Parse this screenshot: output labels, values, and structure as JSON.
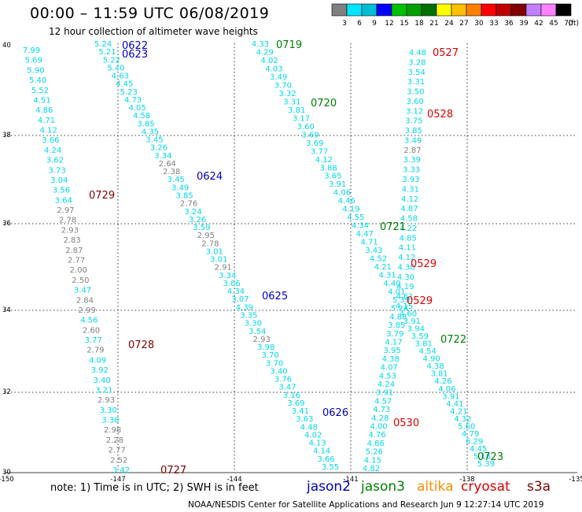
{
  "header": {
    "title": "00:00 – 11:59 UTC 06/08/2019",
    "subtitle": "12 hour collection of altimeter wave heights"
  },
  "colorbar": {
    "unit_label": "(ft)",
    "bins": [
      {
        "label": "3",
        "color": "#808080"
      },
      {
        "label": "6",
        "color": "#00e5ff"
      },
      {
        "label": "9",
        "color": "#00bcd4"
      },
      {
        "label": "12",
        "color": "#0000ff"
      },
      {
        "label": "15",
        "color": "#00c000"
      },
      {
        "label": "18",
        "color": "#00a000"
      },
      {
        "label": "21",
        "color": "#007000"
      },
      {
        "label": "24",
        "color": "#ffff00"
      },
      {
        "label": "27",
        "color": "#ffc000"
      },
      {
        "label": "30",
        "color": "#ff8000"
      },
      {
        "label": "33",
        "color": "#ff0000"
      },
      {
        "label": "36",
        "color": "#c00000"
      },
      {
        "label": "39",
        "color": "#800000"
      },
      {
        "label": "42",
        "color": "#c080ff"
      },
      {
        "label": "45",
        "color": "#ff80ff"
      },
      {
        "label": "70",
        "color": "#000000"
      }
    ]
  },
  "map": {
    "lon_ticks": [
      "-150",
      "-147",
      "-144",
      "-141",
      "-138",
      "-135"
    ],
    "lat_ticks": [
      "40",
      "38",
      "36",
      "34",
      "32",
      "30"
    ]
  },
  "colors": {
    "cyan": "#00d8e8",
    "gray": "#808080",
    "jason2": "#0000c0",
    "jason3": "#008000",
    "altika": "#ff8c00",
    "cryosat": "#e00000",
    "s3a": "#800000"
  },
  "tracks": [
    {
      "id": "left",
      "values": [
        "7.99",
        "5.69",
        "5.90",
        "5.40",
        "5.52",
        "4.51",
        "4.86",
        "4.71",
        "4.12",
        "3.66",
        "4.24",
        "3.62",
        "3.73",
        "3.04",
        "3.56",
        "3.64",
        "2.97",
        "2.78",
        "2.93",
        "2.83",
        "2.87",
        "2.77",
        "2.00",
        "2.50",
        "3.47",
        "2.84",
        "2.99",
        "4.56",
        "2.60",
        "3.77",
        "2.79",
        "4.09",
        "3.92",
        "3.40",
        "3.21",
        "2.93",
        "3.30",
        "3.38",
        "2.98",
        "2.28",
        "2.77",
        "2.52",
        "3.42"
      ],
      "colors": [
        "c",
        "c",
        "c",
        "c",
        "c",
        "c",
        "c",
        "c",
        "c",
        "c",
        "c",
        "c",
        "c",
        "c",
        "c",
        "c",
        "g",
        "g",
        "g",
        "g",
        "g",
        "g",
        "g",
        "g",
        "c",
        "g",
        "g",
        "c",
        "g",
        "c",
        "g",
        "c",
        "c",
        "c",
        "c",
        "g",
        "c",
        "c",
        "g",
        "g",
        "g",
        "g",
        "c"
      ]
    },
    {
      "id": "jason2-a",
      "values": [
        "5.24",
        "5.21",
        "5.22",
        "5.40",
        "4.63",
        "4.45",
        "5.23",
        "4.73",
        "4.05",
        "4.58",
        "3.85",
        "4.35",
        "3.45",
        "3.26",
        "3.34",
        "2.64",
        "2.38",
        "3.45",
        "3.49",
        "3.85",
        "2.76",
        "3.24",
        "3.26",
        "3.59",
        "2.95",
        "2.78",
        "3.01",
        "3.01",
        "2.91",
        "3.34",
        "3.66",
        "4.34",
        "3.07",
        "4.39",
        "3.35",
        "3.30",
        "3.54",
        "2.93",
        "3.98",
        "3.70",
        "3.70",
        "3.40",
        "3.76",
        "3.47",
        "3.16",
        "3.69",
        "3.41",
        "3.63",
        "4.48",
        "4.02",
        "4.13",
        "4.14",
        "3.66",
        "3.55"
      ],
      "colors": [
        "c",
        "c",
        "c",
        "c",
        "c",
        "c",
        "c",
        "c",
        "c",
        "c",
        "c",
        "c",
        "c",
        "c",
        "c",
        "g",
        "g",
        "c",
        "c",
        "c",
        "g",
        "c",
        "c",
        "c",
        "g",
        "g",
        "c",
        "c",
        "g",
        "c",
        "c",
        "c",
        "c",
        "c",
        "c",
        "c",
        "c",
        "g",
        "c",
        "c",
        "c",
        "c",
        "c",
        "c",
        "c",
        "c",
        "c",
        "c",
        "c",
        "c",
        "c",
        "c",
        "c",
        "c"
      ]
    },
    {
      "id": "jason3-a",
      "values": [
        "4.33",
        "4.29",
        "4.02",
        "4.03",
        "3.49",
        "3.70",
        "3.32",
        "3.31",
        "3.81",
        "3.17",
        "3.60",
        "3.69",
        "3.69",
        "3.77",
        "4.12",
        "3.88",
        "3.65",
        "3.91",
        "4.06",
        "4.46",
        "4.19",
        "4.55",
        "4.34",
        "4.47",
        "4.71",
        "3.43",
        "4.52",
        "4.21",
        "4.31",
        "4.40",
        "4.01",
        "5.39",
        "5.24",
        "4.88",
        "3.85",
        "3.79",
        "4.17",
        "3.95",
        "4.38",
        "4.07",
        "4.53",
        "4.24",
        "3.91",
        "4.57",
        "4.73",
        "4.28",
        "4.00",
        "4.76",
        "4.86",
        "5.26",
        "4.15",
        "4.82"
      ],
      "colors": [
        "c",
        "c",
        "c",
        "c",
        "c",
        "c",
        "c",
        "c",
        "c",
        "c",
        "c",
        "c",
        "c",
        "c",
        "c",
        "c",
        "c",
        "c",
        "c",
        "c",
        "c",
        "c",
        "c",
        "c",
        "c",
        "c",
        "c",
        "c",
        "c",
        "c",
        "c",
        "c",
        "c",
        "c",
        "c",
        "c",
        "c",
        "c",
        "c",
        "c",
        "c",
        "c",
        "c",
        "c",
        "c",
        "c",
        "c",
        "c",
        "c",
        "c",
        "c",
        "c"
      ]
    },
    {
      "id": "cryosat-a",
      "values": [
        "4.48",
        "3.28",
        "3.54",
        "3.31",
        "3.50",
        "3.60",
        "3.12",
        "3.75",
        "3.85",
        "3.49",
        "2.87",
        "3.39",
        "3.33",
        "3.93",
        "4.31",
        "4.12",
        "4.87",
        "4.58",
        "4.22",
        "4.85",
        "4.11",
        "4.12",
        "4.30",
        "4.30",
        "4.19",
        "4.61",
        "4.15",
        "4.60",
        "3.91",
        "3.94",
        "3.59",
        "3.81",
        "4.54",
        "4.90",
        "4.38",
        "3.81",
        "4.26",
        "4.06",
        "3.91",
        "4.41",
        "4.21",
        "4.32",
        "5.60",
        "4.79",
        "6.29",
        "4.45",
        "5.16",
        "5.39"
      ],
      "colors": [
        "c",
        "c",
        "c",
        "c",
        "c",
        "c",
        "c",
        "c",
        "c",
        "c",
        "g",
        "c",
        "c",
        "c",
        "c",
        "c",
        "c",
        "c",
        "c",
        "c",
        "c",
        "c",
        "c",
        "c",
        "c",
        "c",
        "c",
        "c",
        "c",
        "c",
        "c",
        "c",
        "c",
        "c",
        "c",
        "c",
        "c",
        "c",
        "c",
        "c",
        "c",
        "c",
        "c",
        "c",
        "c",
        "c",
        "c",
        "c"
      ]
    }
  ],
  "track_labels": [
    {
      "text": "0622",
      "color": "jason2"
    },
    {
      "text": "0623",
      "color": "jason2"
    },
    {
      "text": "0624",
      "color": "jason2"
    },
    {
      "text": "0625",
      "color": "jason2"
    },
    {
      "text": "0626",
      "color": "jason2"
    },
    {
      "text": "0719",
      "color": "jason3"
    },
    {
      "text": "0720",
      "color": "jason3"
    },
    {
      "text": "0721",
      "color": "jason3"
    },
    {
      "text": "0722",
      "color": "jason3"
    },
    {
      "text": "0723",
      "color": "jason3"
    },
    {
      "text": "0527",
      "color": "cryosat"
    },
    {
      "text": "0528",
      "color": "cryosat"
    },
    {
      "text": "0529",
      "color": "cryosat"
    },
    {
      "text": "0529",
      "color": "cryosat"
    },
    {
      "text": "0530",
      "color": "cryosat"
    },
    {
      "text": "0729",
      "color": "s3a"
    },
    {
      "text": "0728",
      "color": "s3a"
    },
    {
      "text": "0727",
      "color": "s3a"
    }
  ],
  "footer": {
    "note": "note:  1) Time is in UTC;  2) SWH is in feet",
    "legend": [
      {
        "text": "jason2",
        "color": "jason2"
      },
      {
        "text": "jason3",
        "color": "jason3"
      },
      {
        "text": "altika",
        "color": "altika"
      },
      {
        "text": "cryosat",
        "color": "cryosat"
      },
      {
        "text": "s3a",
        "color": "s3a"
      }
    ],
    "credit": "NOAA/NESDIS Center for Satellite Applications and Research    Jun  9 12:27:14 UTC 2019"
  }
}
